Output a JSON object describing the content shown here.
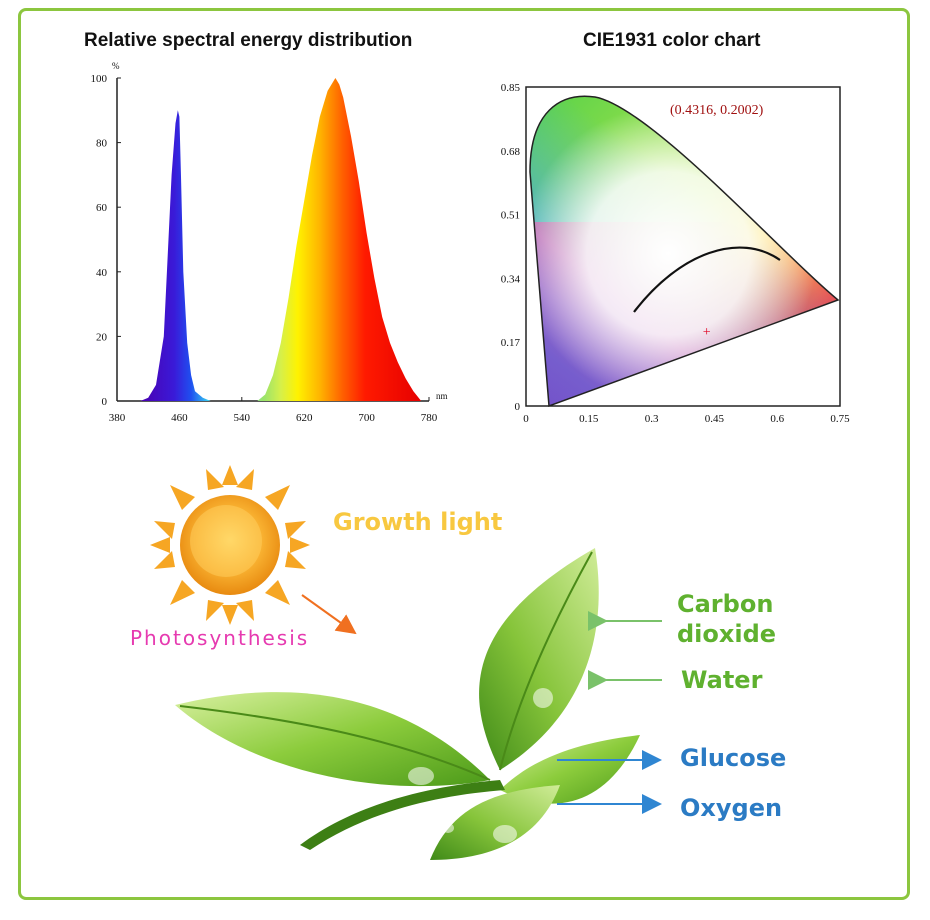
{
  "colors": {
    "frame": "#8cc63f",
    "sun": "#f6a623",
    "photo": "#e63ab0",
    "leaf_label": "#5fb12f",
    "output_label": "#2b7bc4",
    "arrow_in": "#7ac26a",
    "arrow_out": "#2f86d2"
  },
  "chart_data": [
    {
      "type": "area",
      "title": "Relative spectral energy distribution",
      "ylabel": "%",
      "xlabel": "nm",
      "xlim": [
        380,
        780
      ],
      "ylim": [
        0,
        100
      ],
      "xticks": [
        "380",
        "460",
        "540",
        "620",
        "700",
        "780"
      ],
      "yticks": [
        "0",
        "20",
        "40",
        "60",
        "80",
        "100"
      ],
      "x": [
        410,
        420,
        430,
        440,
        445,
        450,
        455,
        458,
        460,
        462,
        465,
        470,
        475,
        480,
        490,
        500,
        510,
        520,
        530,
        540,
        550,
        560,
        570,
        580,
        590,
        600,
        610,
        620,
        630,
        640,
        650,
        660,
        665,
        670,
        680,
        690,
        700,
        710,
        720,
        730,
        740,
        750,
        760,
        770
      ],
      "y": [
        0,
        1,
        5,
        20,
        45,
        70,
        86,
        90,
        88,
        70,
        40,
        18,
        8,
        3,
        1,
        0,
        0,
        0,
        0,
        0,
        0,
        0,
        2,
        8,
        18,
        32,
        48,
        62,
        76,
        88,
        96,
        100,
        98,
        94,
        82,
        68,
        52,
        38,
        26,
        18,
        12,
        7,
        3,
        0
      ]
    },
    {
      "type": "scatter",
      "title": "CIE1931 color chart",
      "xlim": [
        0,
        0.75
      ],
      "ylim": [
        0,
        0.85
      ],
      "xticks": [
        "0",
        "0.15",
        "0.3",
        "0.45",
        "0.6",
        "0.75"
      ],
      "yticks": [
        "0",
        "0.17",
        "0.34",
        "0.51",
        "0.68",
        "0.85"
      ],
      "point": {
        "x": 0.4316,
        "y": 0.2002
      },
      "point_label": "(0.4316,  0.2002)"
    }
  ],
  "diagram": {
    "growth_light": "Growth light",
    "photosynthesis": "Photosynthesis",
    "carbon": "Carbon",
    "dioxide": "dioxide",
    "water": "Water",
    "glucose": "Glucose",
    "oxygen": "Oxygen"
  }
}
